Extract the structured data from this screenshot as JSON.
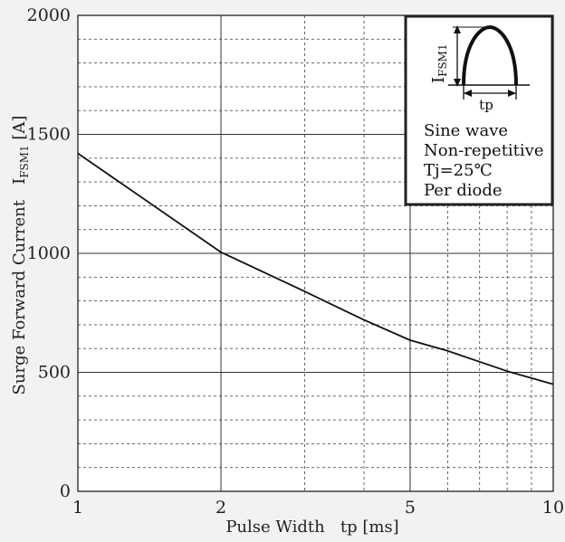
{
  "chart_data": {
    "type": "line",
    "title": "",
    "xlabel": "Pulse Width   tp [ms]",
    "ylabel": "Surge Forward Current   I",
    "ylabel_sub": "FSM1",
    "ylabel_unit": " [A]",
    "x_scale": "log",
    "xlim": [
      1,
      10
    ],
    "ylim": [
      0,
      2000
    ],
    "x_ticks": [
      {
        "value": 1,
        "label": "1"
      },
      {
        "value": 2,
        "label": "2"
      },
      {
        "value": 5,
        "label": "5"
      },
      {
        "value": 10,
        "label": "10"
      }
    ],
    "y_ticks": [
      {
        "value": 0,
        "label": "0"
      },
      {
        "value": 500,
        "label": "500"
      },
      {
        "value": 1000,
        "label": "1000"
      },
      {
        "value": 1500,
        "label": "1500"
      },
      {
        "value": 2000,
        "label": "2000"
      }
    ],
    "grid": true,
    "series": [
      {
        "x": [
          1,
          2,
          3,
          4,
          5,
          6,
          8,
          10
        ],
        "y": [
          1420,
          1005,
          840,
          720,
          635,
          590,
          505,
          450
        ]
      }
    ]
  },
  "inset": {
    "symbol": "I",
    "symbol_sub": "FSM1",
    "pulse_label": "tp",
    "lines": [
      "Sine wave",
      "Non-repetitive",
      "Tj=25℃",
      "Per diode"
    ]
  }
}
